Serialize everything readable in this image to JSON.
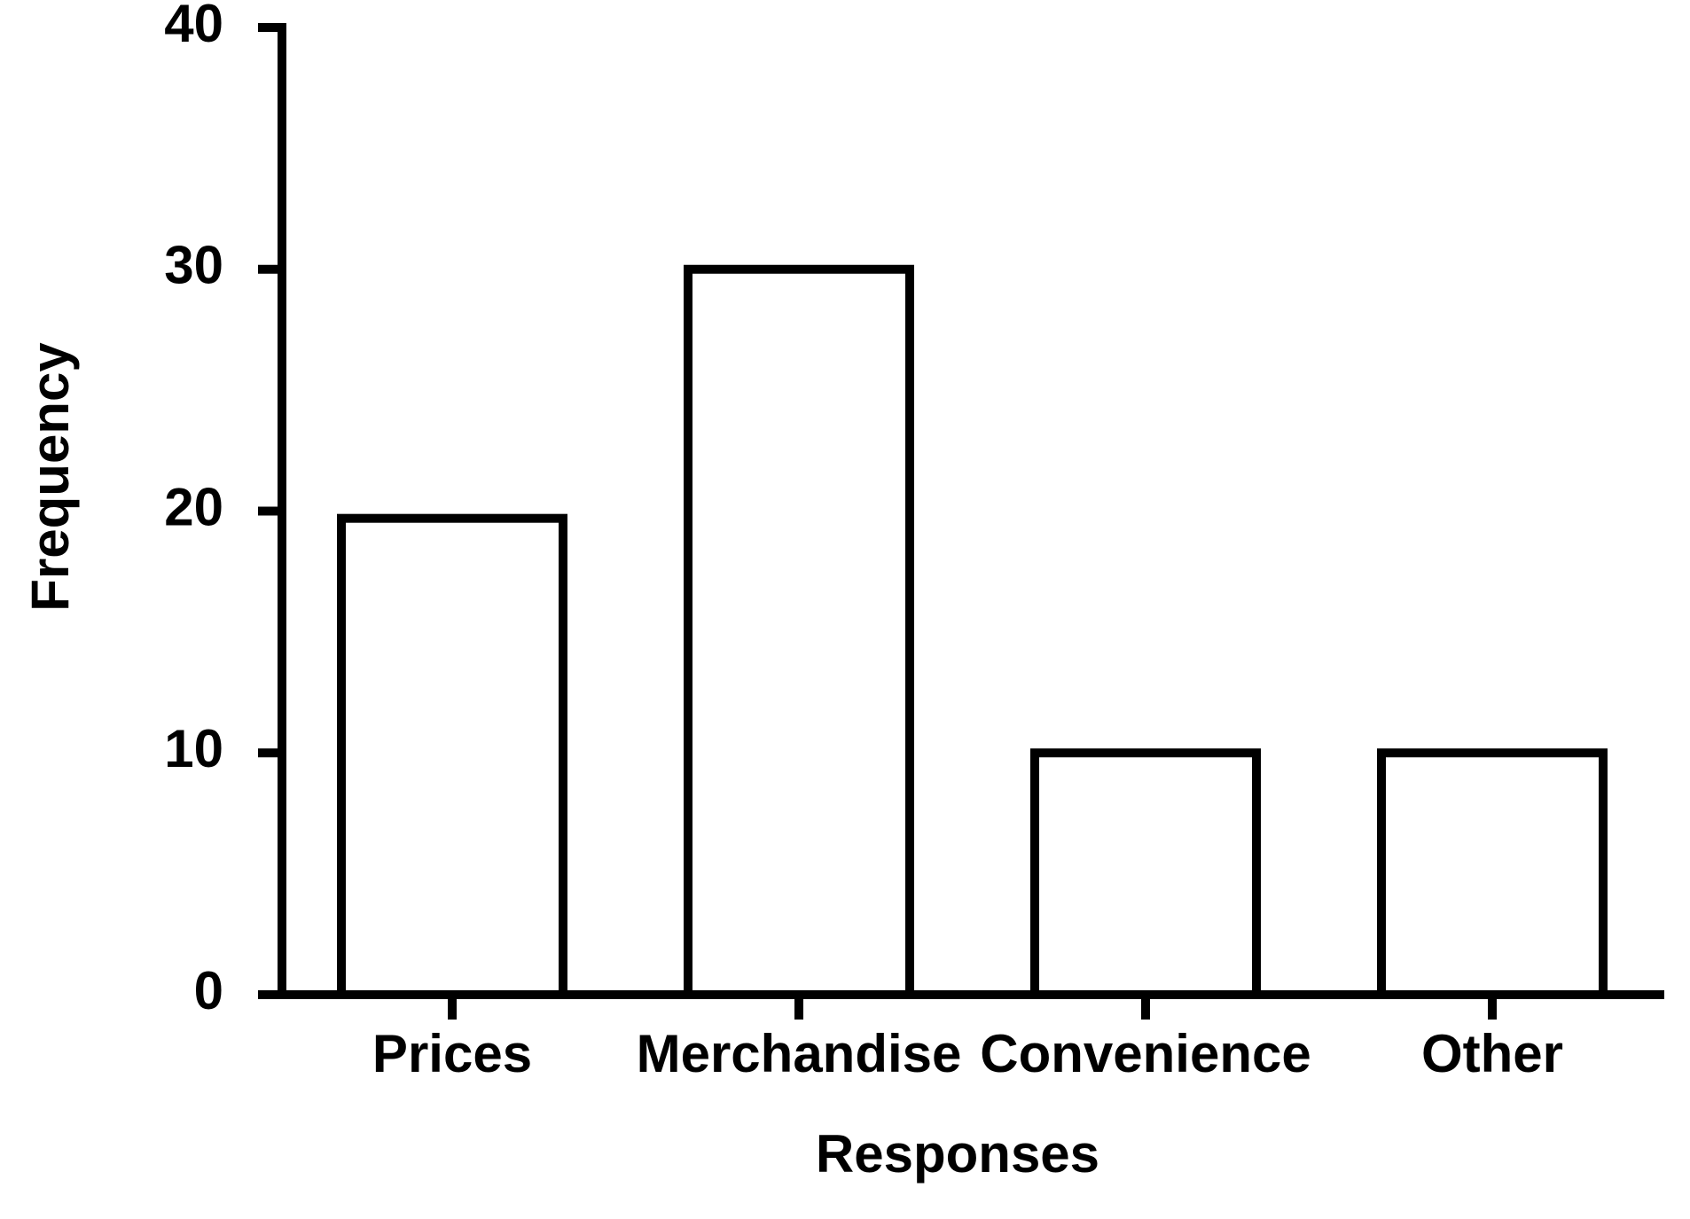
{
  "chart_data": {
    "type": "bar",
    "x_label": "Responses",
    "y_label": "Frequency",
    "categories": [
      "Prices",
      "Merchandise",
      "Convenience",
      "Other"
    ],
    "values": [
      19.7,
      30,
      10,
      10
    ],
    "color": "#ffffff",
    "ylim": [
      0,
      40
    ],
    "yticks": [
      0,
      10,
      20,
      30,
      40
    ]
  }
}
